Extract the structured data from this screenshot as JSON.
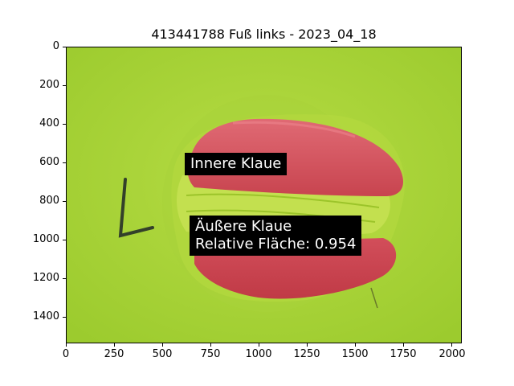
{
  "figure": {
    "title": "413441788 Fuß links - 2023_04_18"
  },
  "axes": {
    "x_ticks": [
      "0",
      "250",
      "500",
      "750",
      "1000",
      "1250",
      "1500",
      "1750",
      "2000"
    ],
    "y_ticks": [
      "0",
      "200",
      "400",
      "600",
      "800",
      "1000",
      "1200",
      "1400"
    ]
  },
  "annotations": {
    "inner": "Innere Klaue",
    "outer_line1": "Äußere Klaue",
    "outer_line2": "Relative Fläche: 0.954"
  },
  "colors": {
    "background": "#a6d23a",
    "claw": "#d9505e"
  }
}
